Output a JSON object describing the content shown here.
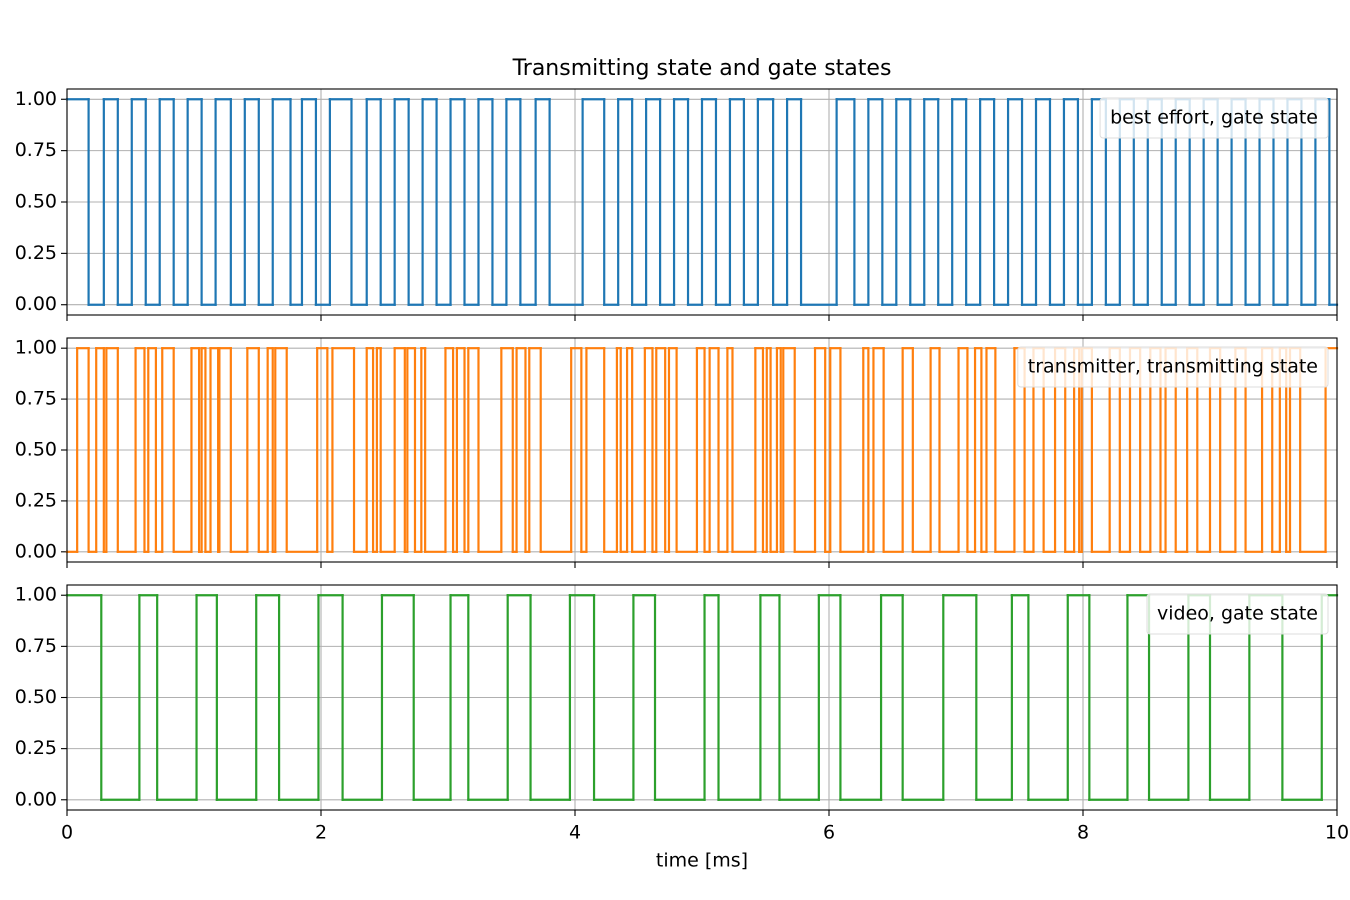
{
  "chart_data": [
    {
      "type": "line",
      "drawstyle": "steps-post",
      "title": "Transmitting state and gate states",
      "x": [
        0,
        0.17,
        0.29,
        0.4,
        0.51,
        0.62,
        0.73,
        0.84,
        0.95,
        1.06,
        1.17,
        1.29,
        1.4,
        1.51,
        1.62,
        1.76,
        1.85,
        1.96,
        2.07,
        2.24,
        2.36,
        2.47,
        2.58,
        2.69,
        2.8,
        2.91,
        3.02,
        3.13,
        3.24,
        3.35,
        3.46,
        3.57,
        3.69,
        3.8,
        4.06,
        4.23,
        4.34,
        4.45,
        4.56,
        4.67,
        4.78,
        4.89,
        5.0,
        5.11,
        5.22,
        5.33,
        5.44,
        5.56,
        5.67,
        5.78,
        6.06,
        6.2,
        6.31,
        6.42,
        6.53,
        6.64,
        6.75,
        6.86,
        6.97,
        7.08,
        7.19,
        7.3,
        7.41,
        7.52,
        7.63,
        7.74,
        7.85,
        7.96,
        8.07,
        8.18,
        8.29,
        8.4,
        8.51,
        8.62,
        8.73,
        8.84,
        8.95,
        9.06,
        9.17,
        9.28,
        9.39,
        9.5,
        9.61,
        9.72,
        9.83,
        9.94
      ],
      "series": [
        {
          "name": "best effort, gate state",
          "color": "#1f77b4",
          "values": [
            1,
            0,
            1,
            0,
            1,
            0,
            1,
            0,
            1,
            0,
            1,
            0,
            1,
            0,
            1,
            0,
            1,
            0,
            1,
            0,
            1,
            0,
            1,
            0,
            1,
            0,
            1,
            0,
            1,
            0,
            1,
            0,
            1,
            0,
            1,
            0,
            1,
            0,
            1,
            0,
            1,
            0,
            1,
            0,
            1,
            0,
            1,
            0,
            1,
            0,
            1,
            0,
            1,
            0,
            1,
            0,
            1,
            0,
            1,
            0,
            1,
            0,
            1,
            0,
            1,
            0,
            1,
            0,
            1,
            0,
            1,
            0,
            1,
            0,
            1,
            0,
            1,
            0,
            1,
            0,
            1,
            0,
            1,
            0,
            1,
            0
          ]
        }
      ],
      "xlim": [
        0,
        10
      ],
      "xticks": [
        0,
        2,
        4,
        6,
        8,
        10
      ],
      "ylim": [
        -0.05,
        1.05
      ],
      "yticks": [
        {
          "value": 0,
          "label": "0.00"
        },
        {
          "value": 0.25,
          "label": "0.25"
        },
        {
          "value": 0.5,
          "label": "0.50"
        },
        {
          "value": 0.75,
          "label": "0.75"
        },
        {
          "value": 1,
          "label": "1.00"
        }
      ],
      "grid": true,
      "legend": "upper right"
    },
    {
      "type": "line",
      "drawstyle": "steps-post",
      "x": [
        0,
        0.08,
        0.17,
        0.23,
        0.29,
        0.31,
        0.4,
        0.54,
        0.61,
        0.64,
        0.7,
        0.75,
        0.84,
        0.98,
        1.04,
        1.06,
        1.09,
        1.13,
        1.19,
        1.2,
        1.29,
        1.42,
        1.51,
        1.58,
        1.62,
        1.64,
        1.73,
        1.97,
        2.05,
        2.09,
        2.26,
        2.36,
        2.41,
        2.44,
        2.47,
        2.58,
        2.66,
        2.68,
        2.74,
        2.79,
        2.82,
        2.98,
        3.04,
        3.07,
        3.13,
        3.16,
        3.24,
        3.42,
        3.51,
        3.54,
        3.61,
        3.64,
        3.73,
        3.97,
        4.05,
        4.09,
        4.23,
        4.33,
        4.36,
        4.41,
        4.45,
        4.55,
        4.61,
        4.64,
        4.71,
        4.74,
        4.8,
        4.96,
        5.02,
        5.06,
        5.13,
        5.2,
        5.24,
        5.42,
        5.48,
        5.51,
        5.54,
        5.59,
        5.62,
        5.64,
        5.73,
        5.89,
        5.97,
        6.01,
        6.09,
        6.27,
        6.31,
        6.35,
        6.43,
        6.58,
        6.66,
        6.8,
        6.87,
        7.02,
        7.09,
        7.15,
        7.2,
        7.24,
        7.31,
        7.46,
        7.54,
        7.61,
        7.69,
        7.78,
        7.86,
        7.93,
        7.97,
        7.99,
        8.07,
        8.21,
        8.29,
        8.37,
        8.45,
        8.53,
        8.61,
        8.65,
        8.73,
        8.82,
        8.9,
        9.0,
        9.08,
        9.2,
        9.28,
        9.41,
        9.49,
        9.55,
        9.6,
        9.63,
        9.71,
        9.91
      ],
      "series": [
        {
          "name": "transmitter, transmitting state",
          "color": "#ff7f0e",
          "values": [
            0,
            1,
            0,
            1,
            0,
            1,
            0,
            1,
            0,
            1,
            0,
            1,
            0,
            1,
            0,
            1,
            0,
            1,
            0,
            1,
            0,
            1,
            0,
            1,
            0,
            1,
            0,
            1,
            0,
            1,
            0,
            1,
            0,
            1,
            0,
            1,
            0,
            1,
            0,
            1,
            0,
            1,
            0,
            1,
            0,
            1,
            0,
            1,
            0,
            1,
            0,
            1,
            0,
            1,
            0,
            1,
            0,
            1,
            0,
            1,
            0,
            1,
            0,
            1,
            0,
            1,
            0,
            1,
            0,
            1,
            0,
            1,
            0,
            1,
            0,
            1,
            0,
            1,
            0,
            1,
            0,
            1,
            0,
            1,
            0,
            1,
            0,
            1,
            0,
            1,
            0,
            1,
            0,
            1,
            0,
            1,
            0,
            1,
            0,
            1,
            0,
            1,
            0,
            1,
            0,
            1,
            0,
            1,
            0,
            1,
            0,
            1,
            0,
            1,
            0,
            1,
            0,
            1,
            0,
            1,
            0,
            1,
            0,
            1,
            0,
            1,
            0,
            1,
            0,
            1
          ]
        }
      ],
      "xlim": [
        0,
        10
      ],
      "xticks": [
        0,
        2,
        4,
        6,
        8,
        10
      ],
      "ylim": [
        -0.05,
        1.05
      ],
      "yticks": [
        {
          "value": 0,
          "label": "0.00"
        },
        {
          "value": 0.25,
          "label": "0.25"
        },
        {
          "value": 0.5,
          "label": "0.50"
        },
        {
          "value": 0.75,
          "label": "0.75"
        },
        {
          "value": 1,
          "label": "1.00"
        }
      ],
      "grid": true,
      "legend": "upper right"
    },
    {
      "type": "line",
      "drawstyle": "steps-post",
      "xlabel": "time [ms]",
      "x": [
        0,
        0.27,
        0.57,
        0.71,
        1.02,
        1.18,
        1.49,
        1.67,
        1.98,
        2.17,
        2.48,
        2.73,
        3.02,
        3.16,
        3.47,
        3.65,
        3.96,
        4.15,
        4.46,
        4.63,
        5.02,
        5.13,
        5.46,
        5.61,
        5.92,
        6.09,
        6.41,
        6.58,
        6.9,
        7.16,
        7.44,
        7.57,
        7.88,
        8.05,
        8.35,
        8.52,
        8.83,
        9.0,
        9.31,
        9.57,
        9.88
      ],
      "series": [
        {
          "name": "video, gate state",
          "color": "#2ca02c",
          "values": [
            1,
            0,
            1,
            0,
            1,
            0,
            1,
            0,
            1,
            0,
            1,
            0,
            1,
            0,
            1,
            0,
            1,
            0,
            1,
            0,
            1,
            0,
            1,
            0,
            1,
            0,
            1,
            0,
            1,
            0,
            1,
            0,
            1,
            0,
            1,
            0,
            1,
            0,
            1,
            0,
            1
          ]
        }
      ],
      "xlim": [
        0,
        10
      ],
      "xticks": [
        0,
        2,
        4,
        6,
        8,
        10
      ],
      "ylim": [
        -0.05,
        1.05
      ],
      "yticks": [
        {
          "value": 0,
          "label": "0.00"
        },
        {
          "value": 0.25,
          "label": "0.25"
        },
        {
          "value": 0.5,
          "label": "0.50"
        },
        {
          "value": 0.75,
          "label": "0.75"
        },
        {
          "value": 1,
          "label": "1.00"
        }
      ],
      "grid": true,
      "legend": "upper right"
    }
  ]
}
